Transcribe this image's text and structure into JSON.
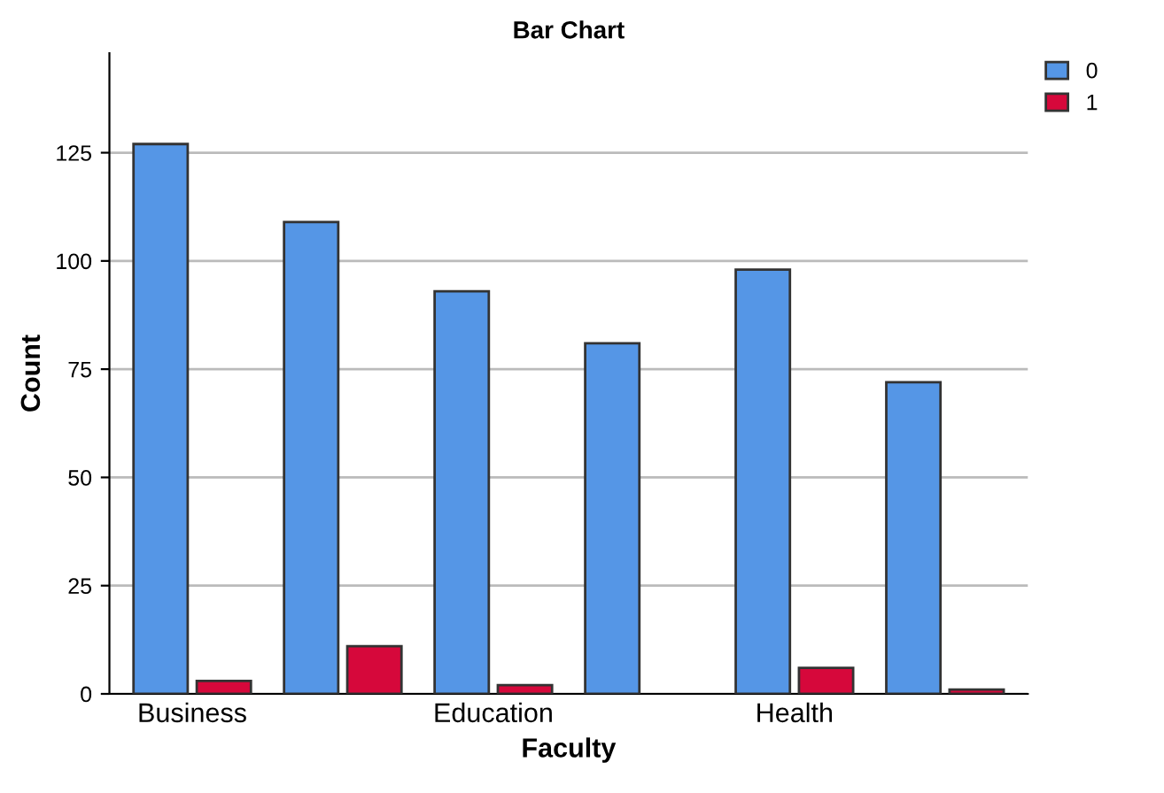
{
  "chart_data": {
    "type": "bar",
    "title": "Bar Chart",
    "xlabel": "Faculty",
    "ylabel": "Count",
    "categories": [
      "Business",
      null,
      "Education",
      null,
      "Health",
      null
    ],
    "series": [
      {
        "name": "0",
        "color": "#5596e6",
        "values": [
          127,
          109,
          93,
          81,
          98,
          72
        ]
      },
      {
        "name": "1",
        "color": "#d6083b",
        "values": [
          3,
          11,
          2,
          null,
          6,
          1
        ]
      }
    ],
    "ylim": [
      0,
      148
    ],
    "yticks": [
      0,
      25,
      50,
      75,
      100,
      125
    ],
    "grid": "y",
    "legend": "top right"
  }
}
